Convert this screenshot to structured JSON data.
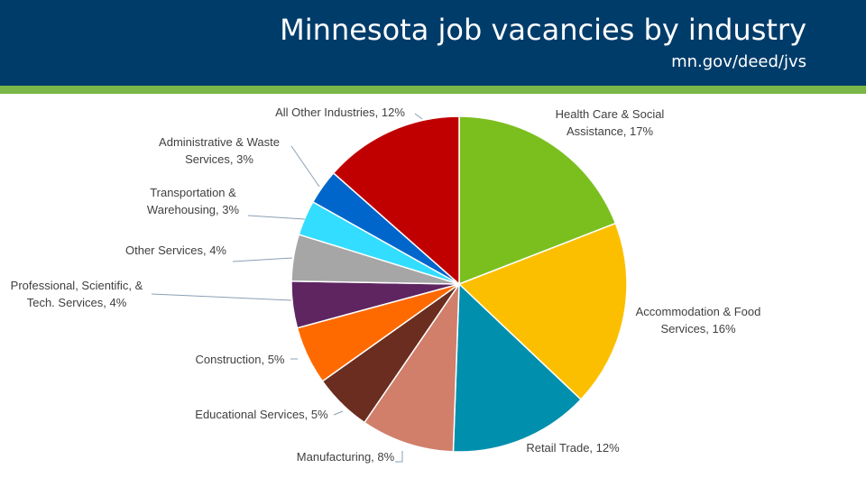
{
  "header": {
    "title": "Minnesota job vacancies by industry",
    "subtitle": "mn.gov/deed/jvs"
  },
  "chart_data": {
    "type": "pie",
    "title": "Minnesota job vacancies by industry",
    "slices": [
      {
        "lines": [
          "Health Care & Social",
          "Assistance, 17%"
        ],
        "value": 17,
        "color": "#7bbf1f"
      },
      {
        "lines": [
          "Accommodation & Food",
          "Services, 16%"
        ],
        "value": 16,
        "color": "#fcbf00"
      },
      {
        "lines": [
          "Retail Trade, 12%"
        ],
        "value": 12,
        "color": "#008fad"
      },
      {
        "lines": [
          "Manufacturing, 8%"
        ],
        "value": 8,
        "color": "#d17f6b"
      },
      {
        "lines": [
          "Educational Services, 5%"
        ],
        "value": 5,
        "color": "#6b2d1f"
      },
      {
        "lines": [
          "Construction, 5%"
        ],
        "value": 5,
        "color": "#ff6a00"
      },
      {
        "lines": [
          "Professional, Scientific, &",
          "Tech. Services, 4%"
        ],
        "value": 4,
        "color": "#5e2560"
      },
      {
        "lines": [
          "Other Services, 4%"
        ],
        "value": 4,
        "color": "#a6a6a6"
      },
      {
        "lines": [
          "Transportation &",
          "Warehousing, 3%"
        ],
        "value": 3,
        "color": "#33ddff"
      },
      {
        "lines": [
          "Administrative & Waste",
          "Services, 3%"
        ],
        "value": 3,
        "color": "#0066cc"
      },
      {
        "lines": [
          "All Other Industries, 12%"
        ],
        "value": 12,
        "color": "#c00000"
      }
    ]
  }
}
